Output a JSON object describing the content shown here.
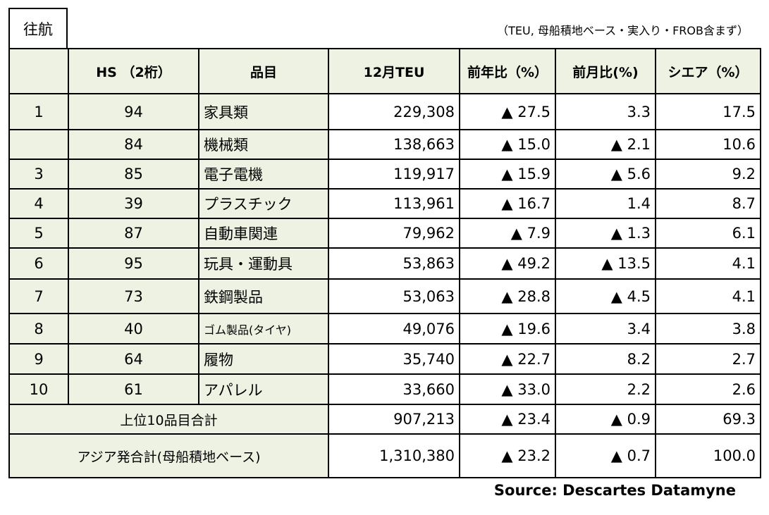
{
  "tag": "往航",
  "note": "（TEU, 母船積地ベース・実入り・FROB含まず）",
  "headers": [
    "",
    "HS （2桁）",
    "品目",
    "12月TEU",
    "前年比（%）",
    "前月比(%)",
    "シエア（%）"
  ],
  "rows": [
    {
      "rank": "1",
      "hs": "94",
      "item": "家具類",
      "teu": "229,308",
      "yoy": "▲ 27.5",
      "mom": "3.3",
      "share": "17.5"
    },
    {
      "rank": "",
      "hs": "84",
      "item": "機械類",
      "teu": "138,663",
      "yoy": "▲ 15.0",
      "mom": "▲ 2.1",
      "share": "10.6"
    },
    {
      "rank": "3",
      "hs": "85",
      "item": "電子電機",
      "teu": "119,917",
      "yoy": "▲ 15.9",
      "mom": "▲ 5.6",
      "share": "9.2"
    },
    {
      "rank": "4",
      "hs": "39",
      "item": "プラスチック",
      "teu": "113,961",
      "yoy": "▲ 16.7",
      "mom": "1.4",
      "share": "8.7"
    },
    {
      "rank": "5",
      "hs": "87",
      "item": "自動車関連",
      "teu": "79,962",
      "yoy": "▲ 7.9",
      "mom": "▲ 1.3",
      "share": "6.1"
    },
    {
      "rank": "6",
      "hs": "95",
      "item": "玩具・運動具",
      "teu": "53,863",
      "yoy": "▲ 49.2",
      "mom": "▲ 13.5",
      "share": "4.1"
    },
    {
      "rank": "7",
      "hs": "73",
      "item": "鉄鋼製品",
      "teu": "53,063",
      "yoy": "▲ 28.8",
      "mom": "▲ 4.5",
      "share": "4.1"
    },
    {
      "rank": "8",
      "hs": "40",
      "item": "ゴム製品(タイヤ)",
      "teu": "49,076",
      "yoy": "▲ 19.6",
      "mom": "3.4",
      "share": "3.8"
    },
    {
      "rank": "9",
      "hs": "64",
      "item": "履物",
      "teu": "35,740",
      "yoy": "▲ 22.7",
      "mom": "8.2",
      "share": "2.7"
    },
    {
      "rank": "10",
      "hs": "61",
      "item": "アパレル",
      "teu": "33,660",
      "yoy": "▲ 33.0",
      "mom": "2.2",
      "share": "2.6"
    }
  ],
  "totals": [
    {
      "label": "上位10品目合計",
      "teu": "907,213",
      "yoy": "▲ 23.4",
      "mom": "▲ 0.9",
      "share": "69.3"
    },
    {
      "label": "アジア発合計(母船積地ベース)",
      "teu": "1,310,380",
      "yoy": "▲ 23.2",
      "mom": "▲ 0.7",
      "share": "100.0"
    }
  ],
  "source": "Source: Descartes Datamyne"
}
